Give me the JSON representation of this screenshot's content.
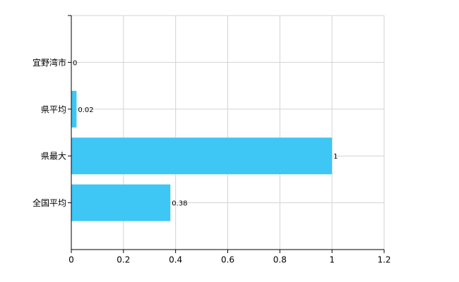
{
  "chart_data": {
    "type": "bar",
    "orientation": "horizontal",
    "categories": [
      "宜野湾市",
      "県平均",
      "県最大",
      "全国平均"
    ],
    "values": [
      0,
      0.02,
      1,
      0.38
    ],
    "color": "#3ec6f4",
    "xlim": [
      0,
      1.2
    ],
    "xticks": [
      0,
      0.2,
      0.4,
      0.6,
      0.8,
      1,
      1.2
    ],
    "grid": true
  }
}
